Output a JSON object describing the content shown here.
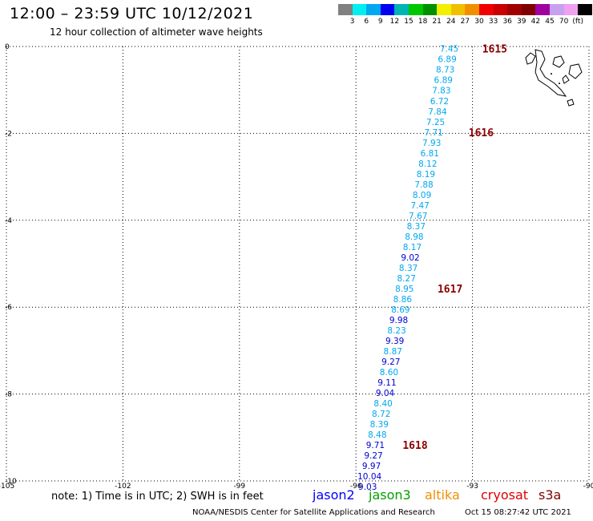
{
  "title": "12:00 – 23:59 UTC 10/12/2021",
  "subtitle": "12 hour collection of altimeter wave heights",
  "scale": {
    "colors": [
      "#808080",
      "#00f0f0",
      "#00a8f0",
      "#0000f0",
      "#00b4b4",
      "#00c800",
      "#009000",
      "#f0f000",
      "#f0c000",
      "#f09000",
      "#f00000",
      "#c80000",
      "#a00000",
      "#800000",
      "#a000a0",
      "#c8a0f0",
      "#f0a0f0",
      "#000000"
    ],
    "labels": [
      "3",
      "6",
      "9",
      "12",
      "15",
      "18",
      "21",
      "24",
      "27",
      "30",
      "33",
      "36",
      "39",
      "42",
      "45",
      "70",
      "(ft)"
    ]
  },
  "axes": {
    "lon_ticks": [
      "-105",
      "-102",
      "-99",
      "-96",
      "-93",
      "-90"
    ],
    "lat_ticks": [
      "0",
      "-2",
      "-4",
      "-6",
      "-8",
      "-10"
    ]
  },
  "chart_data": {
    "type": "scatter",
    "xlabel": "",
    "ylabel": "",
    "xlim": [
      -105,
      -90
    ],
    "ylim": [
      -10,
      0
    ],
    "x_ticks": [
      -105,
      -102,
      -99,
      -96,
      -93,
      -90
    ],
    "y_ticks": [
      0,
      -2,
      -4,
      -6,
      -8,
      -10
    ],
    "grid": true,
    "points": [
      {
        "lon": -93.6,
        "lat": -0.05,
        "swh": "7.45",
        "color": "#00a8f0"
      },
      {
        "lon": -93.65,
        "lat": -0.29,
        "swh": "6.89",
        "color": "#00a8f0"
      },
      {
        "lon": -93.7,
        "lat": -0.53,
        "swh": "8.73",
        "color": "#00a8f0"
      },
      {
        "lon": -93.75,
        "lat": -0.77,
        "swh": "6.89",
        "color": "#00a8f0"
      },
      {
        "lon": -93.8,
        "lat": -1.01,
        "swh": "7.83",
        "color": "#00a8f0"
      },
      {
        "lon": -93.85,
        "lat": -1.25,
        "swh": "6.72",
        "color": "#00a8f0"
      },
      {
        "lon": -93.9,
        "lat": -1.49,
        "swh": "7.84",
        "color": "#00a8f0"
      },
      {
        "lon": -93.95,
        "lat": -1.73,
        "swh": "7.25",
        "color": "#00a8f0"
      },
      {
        "lon": -94.0,
        "lat": -1.97,
        "swh": "7.71",
        "color": "#00a8f0"
      },
      {
        "lon": -94.05,
        "lat": -2.21,
        "swh": "7.93",
        "color": "#00a8f0"
      },
      {
        "lon": -94.1,
        "lat": -2.45,
        "swh": "6.81",
        "color": "#00a8f0"
      },
      {
        "lon": -94.15,
        "lat": -2.69,
        "swh": "8.12",
        "color": "#00a8f0"
      },
      {
        "lon": -94.2,
        "lat": -2.93,
        "swh": "8.19",
        "color": "#00a8f0"
      },
      {
        "lon": -94.25,
        "lat": -3.17,
        "swh": "7.88",
        "color": "#00a8f0"
      },
      {
        "lon": -94.3,
        "lat": -3.41,
        "swh": "8.09",
        "color": "#00a8f0"
      },
      {
        "lon": -94.35,
        "lat": -3.65,
        "swh": "7.47",
        "color": "#00a8f0"
      },
      {
        "lon": -94.4,
        "lat": -3.89,
        "swh": "7.67",
        "color": "#00a8f0"
      },
      {
        "lon": -94.45,
        "lat": -4.13,
        "swh": "8.37",
        "color": "#00a8f0"
      },
      {
        "lon": -94.5,
        "lat": -4.37,
        "swh": "8.98",
        "color": "#00a8f0"
      },
      {
        "lon": -94.55,
        "lat": -4.61,
        "swh": "8.17",
        "color": "#00a8f0"
      },
      {
        "lon": -94.6,
        "lat": -4.85,
        "swh": "9.02",
        "color": "#0000d0"
      },
      {
        "lon": -94.65,
        "lat": -5.09,
        "swh": "8.37",
        "color": "#00a8f0"
      },
      {
        "lon": -94.7,
        "lat": -5.33,
        "swh": "8.27",
        "color": "#00a8f0"
      },
      {
        "lon": -94.75,
        "lat": -5.57,
        "swh": "8.95",
        "color": "#00a8f0"
      },
      {
        "lon": -94.8,
        "lat": -5.81,
        "swh": "8.86",
        "color": "#00a8f0"
      },
      {
        "lon": -94.85,
        "lat": -6.05,
        "swh": "8.69",
        "color": "#00a8f0"
      },
      {
        "lon": -94.9,
        "lat": -6.29,
        "swh": "9.98",
        "color": "#0000d0"
      },
      {
        "lon": -94.95,
        "lat": -6.53,
        "swh": "8.23",
        "color": "#00a8f0"
      },
      {
        "lon": -95.0,
        "lat": -6.77,
        "swh": "9.39",
        "color": "#0000d0"
      },
      {
        "lon": -95.05,
        "lat": -7.01,
        "swh": "8.87",
        "color": "#00a8f0"
      },
      {
        "lon": -95.1,
        "lat": -7.25,
        "swh": "9.27",
        "color": "#0000d0"
      },
      {
        "lon": -95.15,
        "lat": -7.49,
        "swh": "8.60",
        "color": "#00a8f0"
      },
      {
        "lon": -95.2,
        "lat": -7.73,
        "swh": "9.11",
        "color": "#0000d0"
      },
      {
        "lon": -95.25,
        "lat": -7.97,
        "swh": "9.04",
        "color": "#0000d0"
      },
      {
        "lon": -95.3,
        "lat": -8.21,
        "swh": "8.40",
        "color": "#00a8f0"
      },
      {
        "lon": -95.35,
        "lat": -8.45,
        "swh": "8.72",
        "color": "#00a8f0"
      },
      {
        "lon": -95.4,
        "lat": -8.69,
        "swh": "8.39",
        "color": "#00a8f0"
      },
      {
        "lon": -95.45,
        "lat": -8.93,
        "swh": "8.48",
        "color": "#00a8f0"
      },
      {
        "lon": -95.5,
        "lat": -9.17,
        "swh": "9.71",
        "color": "#0000d0"
      },
      {
        "lon": -95.55,
        "lat": -9.41,
        "swh": "9.27",
        "color": "#0000d0"
      },
      {
        "lon": -95.6,
        "lat": -9.65,
        "swh": "9.97",
        "color": "#0000d0"
      },
      {
        "lon": -95.65,
        "lat": -9.89,
        "swh": "10.04",
        "color": "#0000d0"
      },
      {
        "lon": -95.7,
        "lat": -10.13,
        "swh": "9.03",
        "color": "#0000d0"
      }
    ],
    "time_labels": [
      {
        "lon": -92.75,
        "lat": -0.05,
        "text": "1615"
      },
      {
        "lon": -93.1,
        "lat": -1.97,
        "text": "1616"
      },
      {
        "lon": -93.9,
        "lat": -5.57,
        "text": "1617"
      },
      {
        "lon": -94.8,
        "lat": -9.17,
        "text": "1618"
      }
    ]
  },
  "footer": {
    "note": "note: 1) Time is in UTC; 2) SWH is in feet",
    "satellites": [
      {
        "name": "jason2",
        "color": "#0000ff"
      },
      {
        "name": "jason3",
        "color": "#00a000"
      },
      {
        "name": "altika",
        "color": "#f09000"
      },
      {
        "name": "cryosat",
        "color": "#e00000"
      },
      {
        "name": "s3a",
        "color": "#800000"
      }
    ],
    "credit": "NOAA/NESDIS Center for Satellite Applications and Research",
    "timestamp": "Oct 15 08:27:42 UTC 2021"
  },
  "colors": {
    "time_label": "#8b0000",
    "grid": "#000000"
  }
}
